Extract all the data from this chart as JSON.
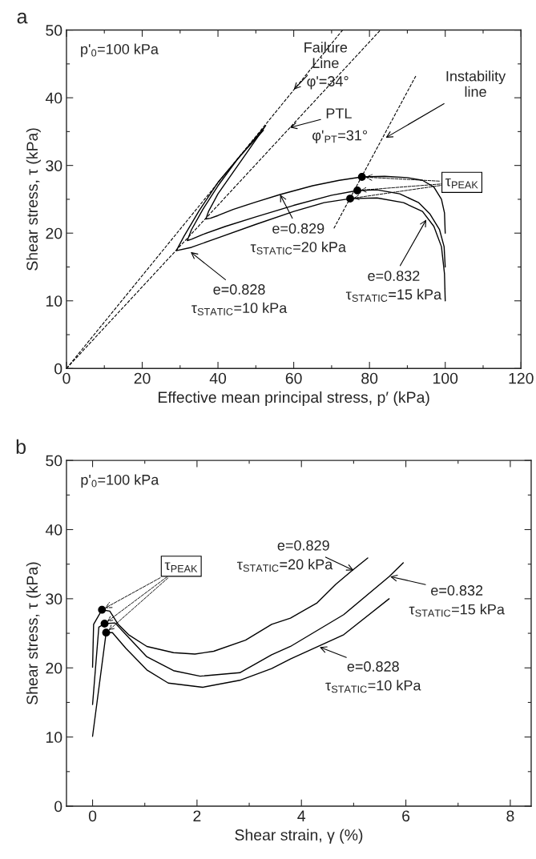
{
  "chart_data": [
    {
      "type": "line",
      "title": "a",
      "xlabel": "Effective mean principal stress, p′ (kPa)",
      "ylabel": "Shear stress, τ (kPa)",
      "xlim": [
        0,
        120
      ],
      "ylim": [
        0,
        50
      ],
      "xticks": [
        0,
        {
          "value": 10,
          "label": null
        },
        20,
        {
          "value": 30,
          "label": null
        },
        40,
        {
          "value": 50,
          "label": null
        },
        60,
        {
          "value": 70,
          "label": null
        },
        80,
        {
          "value": 90,
          "label": null
        },
        100,
        {
          "value": 110,
          "label": null
        },
        120
      ],
      "yticks": [
        0,
        {
          "value": 5,
          "label": null
        },
        10,
        {
          "value": 15,
          "label": null
        },
        20,
        {
          "value": 25,
          "label": null
        },
        30,
        {
          "value": 35,
          "label": null
        },
        40,
        {
          "value": 45,
          "label": null
        },
        50
      ],
      "series": [
        {
          "type": "line",
          "color": "#000000",
          "line_style": "solid",
          "x": [
            100,
            99.8,
            99,
            97,
            94,
            90,
            84,
            78,
            72,
            65,
            56.4,
            50,
            44,
            40,
            38,
            36.8,
            37.5,
            40,
            44,
            48,
            52.6
          ],
          "values": [
            20,
            23,
            25,
            26.8,
            27.8,
            28.2,
            28.4,
            28.3,
            27.8,
            27,
            25.7,
            24.6,
            23.5,
            22.6,
            22.2,
            22.1,
            23.2,
            25.8,
            29,
            32.2,
            35.9
          ]
        },
        {
          "type": "line",
          "color": "#000000",
          "line_style": "solid",
          "x": [
            100,
            99.7,
            98.5,
            96,
            93,
            88,
            82,
            76.8,
            70,
            60,
            50,
            42,
            36,
            33,
            31.9,
            33,
            36,
            40,
            45,
            52
          ],
          "values": [
            15,
            18,
            20.5,
            22.8,
            24.5,
            25.8,
            26.4,
            26.3,
            25.6,
            24.1,
            22.4,
            21,
            19.8,
            19.1,
            18.9,
            20.5,
            23.5,
            27,
            30.8,
            35.5
          ]
        },
        {
          "type": "line",
          "color": "#000000",
          "line_style": "solid",
          "x": [
            100,
            99.8,
            99,
            97,
            94,
            89,
            82,
            74.9,
            68,
            60,
            50,
            40,
            33,
            29,
            31,
            35,
            40,
            46,
            52
          ],
          "values": [
            10,
            14,
            18,
            21,
            23.2,
            24.5,
            25.2,
            25.1,
            24.5,
            23.2,
            21.3,
            19.3,
            17.9,
            17.4,
            19.5,
            23.3,
            27.5,
            31.5,
            35.2
          ]
        },
        {
          "type": "line",
          "color": "#000000",
          "line_style": "dashed",
          "x": [
            0,
            72.9
          ],
          "values": [
            0,
            50
          ]
        },
        {
          "type": "line",
          "color": "#000000",
          "line_style": "dashed",
          "x": [
            0,
            82.9
          ],
          "values": [
            0,
            50
          ]
        },
        {
          "type": "line",
          "color": "#000000",
          "line_style": "dashed",
          "x": [
            70.6,
            92.4
          ],
          "values": [
            20.7,
            43.4
          ]
        },
        {
          "type": "scatter",
          "color": "#000000",
          "marker": "circle",
          "x": [
            78,
            76.8,
            74.9
          ],
          "values": [
            28.3,
            26.3,
            25.1
          ]
        }
      ],
      "annotations": [
        "p'$_{0}$=100 kPa",
        {
          "text": "Failure\nLine",
          "x": 60,
          "y": 41.2
        },
        "φ'=34°",
        {
          "text": "PTL",
          "x": 59,
          "y": 35.6
        },
        "φ'$_{PT}$=31°",
        {
          "text": "Instability\nline",
          "x": 84.3,
          "y": 34.1
        },
        {
          "text": "τ$_{PEAK}$",
          "x": 78,
          "y": 28.3
        },
        {
          "text": "e=0.829",
          "x": 56.4,
          "y": 25.7
        },
        "τ$_{STATIC}$=20 kPa",
        {
          "text": "e=0.828",
          "x": 32.8,
          "y": 17.2
        },
        "τ$_{STATIC}$=10 kPa",
        {
          "text": "e=0.832",
          "x": 95,
          "y": 22
        },
        "τ$_{STATIC}$=15 kPa"
      ]
    },
    {
      "type": "line",
      "title": "b",
      "xlabel": "Shear strain, γ (%)",
      "ylabel": "Shear stress, τ (kPa)",
      "xlim": [
        -0.5,
        8.4
      ],
      "ylim": [
        0,
        50
      ],
      "xticks": [
        0,
        {
          "value": 1,
          "label": null
        },
        2,
        {
          "value": 3,
          "label": null
        },
        4,
        {
          "value": 5,
          "label": null
        },
        6,
        {
          "value": 7,
          "label": null
        },
        8
      ],
      "yticks": [
        0,
        {
          "value": 5,
          "label": null
        },
        10,
        {
          "value": 15,
          "label": null
        },
        20,
        {
          "value": 25,
          "label": null
        },
        30,
        {
          "value": 35,
          "label": null
        },
        40,
        {
          "value": 45,
          "label": null
        },
        50
      ],
      "series": [
        {
          "type": "line",
          "color": "#000000",
          "line_style": "solid",
          "x": [
            0,
            0.02,
            0.18,
            0.33,
            0.49,
            0.69,
            1.04,
            1.55,
            1.96,
            2.32,
            2.93,
            3.43,
            3.79,
            4.3,
            4.66,
            4.96,
            5.27
          ],
          "values": [
            20.1,
            26.3,
            28.4,
            28.2,
            26.3,
            24.8,
            23.1,
            22.2,
            22,
            22.4,
            24,
            26.3,
            27.2,
            29.4,
            32.1,
            34,
            35.9
          ]
        },
        {
          "type": "line",
          "color": "#000000",
          "line_style": "solid",
          "x": [
            0,
            0.12,
            0.23,
            0.43,
            0.64,
            1.04,
            1.55,
            2.06,
            2.82,
            3.43,
            3.79,
            4.81,
            5.68,
            5.95
          ],
          "values": [
            14.7,
            25.9,
            26.4,
            26.5,
            24.8,
            21.6,
            19.6,
            18.8,
            19.3,
            21.9,
            23.1,
            27.7,
            33.2,
            35.2
          ]
        },
        {
          "type": "line",
          "color": "#000000",
          "line_style": "solid",
          "x": [
            0,
            0.26,
            0.38,
            0.64,
            1.04,
            1.45,
            2.11,
            2.82,
            3.43,
            3.79,
            4.81,
            5.68
          ],
          "values": [
            10.1,
            25.1,
            25.1,
            22.8,
            19.7,
            17.8,
            17.2,
            18.2,
            19.9,
            21.3,
            24.8,
            30
          ]
        },
        {
          "type": "scatter",
          "color": "#000000",
          "marker": "circle",
          "x": [
            0.18,
            0.23,
            0.26
          ],
          "values": [
            28.4,
            26.4,
            25.1
          ]
        }
      ],
      "annotations": [
        "p'$_{0}$=100 kPa",
        {
          "text": "τ$_{PEAK}$",
          "x": 0.18,
          "y": 28.4
        },
        {
          "text": "e=0.829",
          "x": 5.0,
          "y": 34.1
        },
        "τ$_{STATIC}$=20 kPa",
        {
          "text": "e=0.832",
          "x": 5.7,
          "y": 33.2
        },
        "τ$_{STATIC}$=15 kPa",
        {
          "text": "e=0.828",
          "x": 4.35,
          "y": 23.0
        },
        "τ$_{STATIC}$=10 kPa"
      ]
    }
  ]
}
